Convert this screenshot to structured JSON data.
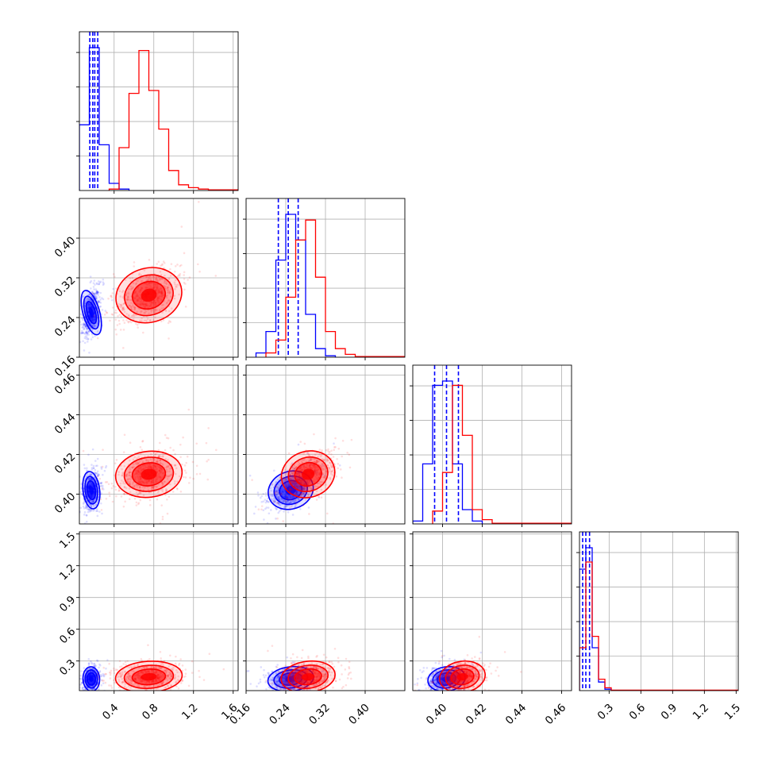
{
  "chart_data": {
    "type": "corner",
    "parameters": [
      "p1",
      "p2",
      "p3",
      "p4"
    ],
    "axis_ranges": [
      [
        0.05,
        1.65
      ],
      [
        0.16,
        0.48
      ],
      [
        0.385,
        0.465
      ],
      [
        0.02,
        1.52
      ]
    ],
    "grid": true,
    "colors": {
      "blue": "#0000ff",
      "red": "#ff0000"
    },
    "ticks": [
      {
        "values": [
          0.4,
          0.8,
          1.2,
          1.6
        ],
        "labels": [
          "0.4",
          "0.8",
          "1.2",
          "1.6"
        ]
      },
      {
        "values": [
          0.16,
          0.24,
          0.32,
          0.4
        ],
        "labels": [
          "0.16",
          "0.24",
          "0.32",
          "0.40"
        ]
      },
      {
        "values": [
          0.4,
          0.42,
          0.44,
          0.46
        ],
        "labels": [
          "0.40",
          "0.42",
          "0.44",
          "0.46"
        ]
      },
      {
        "values": [
          0.3,
          0.6,
          0.9,
          1.2,
          1.5
        ],
        "labels": [
          "0.3",
          "0.6",
          "0.9",
          "1.2",
          "1.5"
        ]
      }
    ],
    "series": [
      {
        "color": "blue",
        "means": [
          0.17,
          0.25,
          0.402,
          0.13
        ],
        "sds": [
          0.04,
          0.022,
          0.0045,
          0.055
        ],
        "quantiles": [
          [
            0.155,
            0.185,
            0.205,
            0.235
          ],
          [
            0.225,
            0.245,
            0.265
          ],
          [
            0.396,
            0.402,
            0.408
          ],
          [
            0.05,
            0.08,
            0.115
          ]
        ],
        "hist": [
          [
            [
              0.05,
              0.15,
              0.46
            ],
            [
              0.15,
              0.25,
              1.0
            ],
            [
              0.25,
              0.35,
              0.32
            ],
            [
              0.35,
              0.45,
              0.05
            ],
            [
              0.45,
              0.55,
              0.01
            ]
          ],
          [
            [
              0.18,
              0.2,
              0.03
            ],
            [
              0.2,
              0.22,
              0.18
            ],
            [
              0.22,
              0.24,
              0.68
            ],
            [
              0.24,
              0.26,
              1.0
            ],
            [
              0.26,
              0.28,
              0.82
            ],
            [
              0.28,
              0.3,
              0.3
            ],
            [
              0.3,
              0.32,
              0.06
            ],
            [
              0.32,
              0.34,
              0.01
            ]
          ],
          [
            [
              0.385,
              0.39,
              0.02
            ],
            [
              0.39,
              0.395,
              0.42
            ],
            [
              0.395,
              0.4,
              0.97
            ],
            [
              0.4,
              0.405,
              1.0
            ],
            [
              0.405,
              0.41,
              0.42
            ],
            [
              0.41,
              0.415,
              0.1
            ],
            [
              0.415,
              0.42,
              0.02
            ]
          ],
          [
            [
              0.02,
              0.08,
              0.85
            ],
            [
              0.08,
              0.14,
              1.0
            ],
            [
              0.14,
              0.2,
              0.3
            ],
            [
              0.2,
              0.26,
              0.06
            ],
            [
              0.26,
              0.32,
              0.01
            ]
          ]
        ]
      },
      {
        "color": "red",
        "means": [
          0.75,
          0.285,
          0.41,
          0.15
        ],
        "sds": [
          0.16,
          0.026,
          0.0055,
          0.07
        ],
        "quantiles": [],
        "hist": [
          [
            [
              0.35,
              0.45,
              0.01
            ],
            [
              0.45,
              0.55,
              0.3
            ],
            [
              0.55,
              0.65,
              0.68
            ],
            [
              0.65,
              0.75,
              0.98
            ],
            [
              0.75,
              0.85,
              0.7
            ],
            [
              0.85,
              0.95,
              0.43
            ],
            [
              0.95,
              1.05,
              0.14
            ],
            [
              1.05,
              1.15,
              0.04
            ],
            [
              1.15,
              1.25,
              0.02
            ],
            [
              1.25,
              1.35,
              0.01
            ],
            [
              1.35,
              1.65,
              0.005
            ]
          ],
          [
            [
              0.2,
              0.22,
              0.03
            ],
            [
              0.22,
              0.24,
              0.12
            ],
            [
              0.24,
              0.26,
              0.42
            ],
            [
              0.26,
              0.28,
              0.82
            ],
            [
              0.28,
              0.3,
              0.96
            ],
            [
              0.3,
              0.32,
              0.56
            ],
            [
              0.32,
              0.34,
              0.18
            ],
            [
              0.34,
              0.36,
              0.06
            ],
            [
              0.36,
              0.38,
              0.02
            ],
            [
              0.38,
              0.48,
              0.005
            ]
          ],
          [
            [
              0.395,
              0.4,
              0.09
            ],
            [
              0.4,
              0.405,
              0.36
            ],
            [
              0.405,
              0.41,
              0.97
            ],
            [
              0.41,
              0.415,
              0.62
            ],
            [
              0.415,
              0.42,
              0.1
            ],
            [
              0.42,
              0.425,
              0.03
            ],
            [
              0.425,
              0.465,
              0.005
            ]
          ],
          [
            [
              0.02,
              0.08,
              0.3
            ],
            [
              0.08,
              0.14,
              0.9
            ],
            [
              0.14,
              0.2,
              0.38
            ],
            [
              0.2,
              0.26,
              0.08
            ],
            [
              0.26,
              0.32,
              0.02
            ],
            [
              0.32,
              1.52,
              0.003
            ]
          ]
        ]
      }
    ]
  }
}
